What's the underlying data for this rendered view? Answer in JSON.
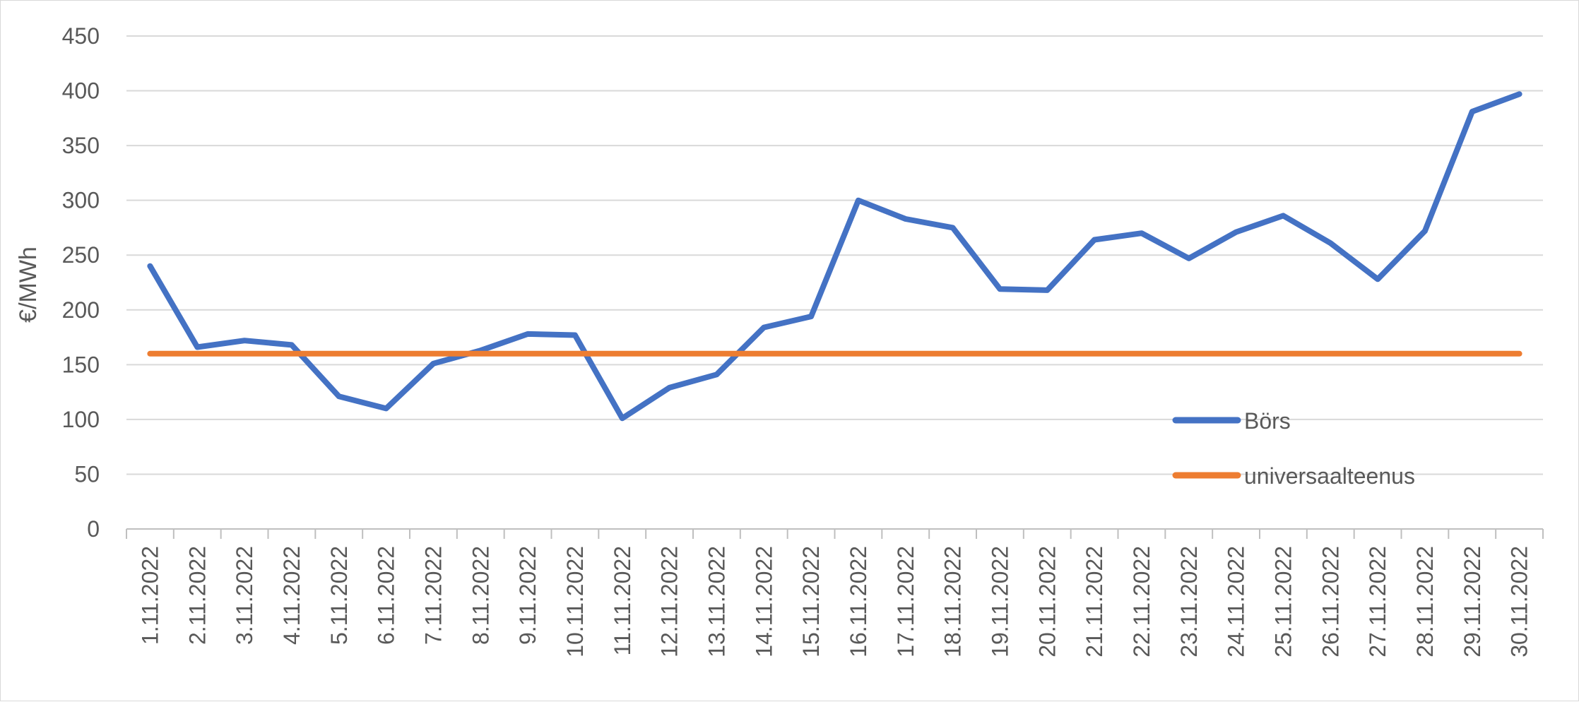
{
  "chart_data": {
    "type": "line",
    "title": "",
    "xlabel": "",
    "ylabel": "€/MWh",
    "ylim": [
      0,
      450
    ],
    "yticks": [
      0,
      50,
      100,
      150,
      200,
      250,
      300,
      350,
      400,
      450
    ],
    "grid": true,
    "legend_position": "bottom-right",
    "categories": [
      "1.11.2022",
      "2.11.2022",
      "3.11.2022",
      "4.11.2022",
      "5.11.2022",
      "6.11.2022",
      "7.11.2022",
      "8.11.2022",
      "9.11.2022",
      "10.11.2022",
      "11.11.2022",
      "12.11.2022",
      "13.11.2022",
      "14.11.2022",
      "15.11.2022",
      "16.11.2022",
      "17.11.2022",
      "18.11.2022",
      "19.11.2022",
      "20.11.2022",
      "21.11.2022",
      "22.11.2022",
      "23.11.2022",
      "24.11.2022",
      "25.11.2022",
      "26.11.2022",
      "27.11.2022",
      "28.11.2022",
      "29.11.2022",
      "30.11.2022"
    ],
    "series": [
      {
        "name": "Börs",
        "color": "#4472c4",
        "values": [
          240,
          166,
          172,
          168,
          121,
          110,
          151,
          163,
          178,
          177,
          101,
          129,
          141,
          184,
          194,
          300,
          283,
          275,
          219,
          218,
          264,
          270,
          247,
          271,
          286,
          261,
          228,
          272,
          381,
          397
        ]
      },
      {
        "name": "universaalteenus",
        "color": "#ed7d31",
        "values": [
          160,
          160,
          160,
          160,
          160,
          160,
          160,
          160,
          160,
          160,
          160,
          160,
          160,
          160,
          160,
          160,
          160,
          160,
          160,
          160,
          160,
          160,
          160,
          160,
          160,
          160,
          160,
          160,
          160,
          160
        ]
      }
    ],
    "colors": {
      "gridline": "#d9d9d9",
      "axis": "#bfbfbf",
      "text": "#595959"
    }
  }
}
